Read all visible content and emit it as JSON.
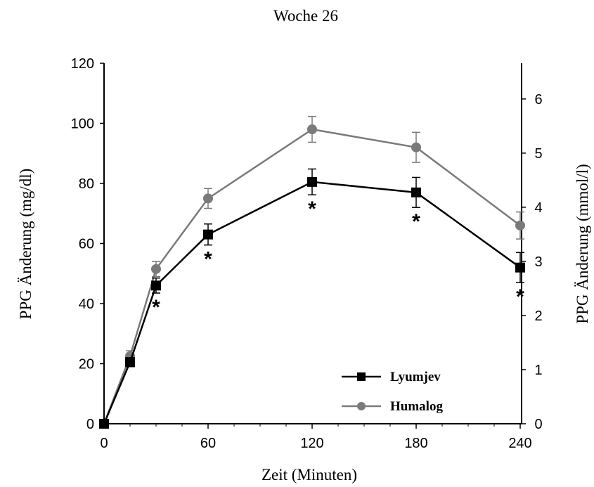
{
  "chart_data": {
    "type": "line",
    "title": "Woche 26",
    "xlabel": "Zeit (Minuten)",
    "ylabel": "PPG Änderung (mg/dl)",
    "y2label": "PPG Änderung (mmol/l)",
    "x": [
      0,
      15,
      30,
      60,
      120,
      180,
      240
    ],
    "xticks": [
      0,
      60,
      120,
      180,
      240
    ],
    "xlim": [
      0,
      240
    ],
    "ylim": [
      0,
      120
    ],
    "yticks": [
      0,
      20,
      40,
      60,
      80,
      100,
      120
    ],
    "y2lim": [
      0,
      6.66
    ],
    "y2ticks": [
      0,
      1,
      2,
      3,
      4,
      5,
      6
    ],
    "grid": false,
    "legend_position": "bottom-right",
    "significance_marker": "*",
    "significance_x": [
      30,
      60,
      120,
      180,
      240
    ],
    "series": [
      {
        "name": "Lyumjev",
        "color": "#000000",
        "marker": "square",
        "values": [
          0,
          20.5,
          46,
          63,
          80.5,
          77,
          52
        ],
        "errors": [
          0,
          1.5,
          2.5,
          3.5,
          4.3,
          5,
          5
        ]
      },
      {
        "name": "Humalog",
        "color": "#7a7a7a",
        "marker": "circle",
        "values": [
          0,
          22.5,
          51.5,
          75,
          98,
          92,
          66
        ],
        "errors": [
          0,
          1.8,
          2.5,
          3.3,
          4.3,
          5,
          4.5
        ]
      }
    ]
  }
}
